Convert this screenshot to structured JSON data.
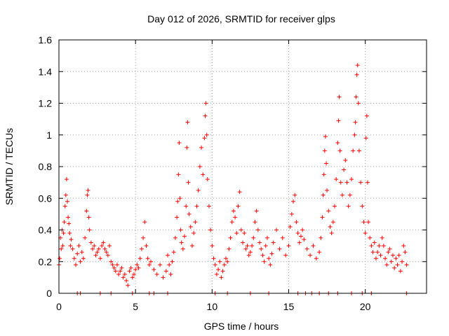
{
  "chart_data": {
    "type": "scatter",
    "title": "Day 012 of 2026, SRMTID for receiver glps",
    "xlabel": "GPS time / hours",
    "ylabel": "SRMTID / TECUs",
    "xlim": [
      0,
      24
    ],
    "ylim": [
      0,
      1.6
    ],
    "xticks": [
      0,
      5,
      10,
      15,
      20
    ],
    "xtick_labels": [
      "0",
      "5",
      "10",
      "15",
      "20"
    ],
    "yticks": [
      0,
      0.2,
      0.4,
      0.6,
      0.8,
      1.0,
      1.2,
      1.4,
      1.6
    ],
    "ytick_labels": [
      "0",
      "0.2",
      "0.4",
      "0.6",
      "0.8",
      "1",
      "1.2",
      "1.4",
      "1.6"
    ],
    "grid": true,
    "marker": "+",
    "series_color": "#ff0000",
    "series": [
      {
        "name": "SRMTID",
        "points": [
          [
            0.0,
            0.18
          ],
          [
            0.05,
            0.22
          ],
          [
            0.1,
            0.35
          ],
          [
            0.15,
            0.28
          ],
          [
            0.2,
            0.4
          ],
          [
            0.25,
            0.3
          ],
          [
            0.3,
            0.38
          ],
          [
            0.35,
            0.45
          ],
          [
            0.4,
            0.55
          ],
          [
            0.45,
            0.62
          ],
          [
            0.5,
            0.72
          ],
          [
            0.55,
            0.58
          ],
          [
            0.6,
            0.48
          ],
          [
            0.65,
            0.44
          ],
          [
            0.7,
            0.38
          ],
          [
            0.75,
            0.3
          ],
          [
            0.8,
            0.34
          ],
          [
            0.9,
            0.28
          ],
          [
            1.0,
            0.22
          ],
          [
            1.1,
            0.18
          ],
          [
            1.2,
            0.25
          ],
          [
            1.3,
            0.3
          ],
          [
            1.4,
            0.2
          ],
          [
            1.5,
            0.26
          ],
          [
            1.6,
            0.22
          ],
          [
            1.7,
            0.35
          ],
          [
            1.8,
            0.52
          ],
          [
            1.85,
            0.62
          ],
          [
            1.9,
            0.65
          ],
          [
            1.95,
            0.48
          ],
          [
            2.0,
            0.4
          ],
          [
            2.1,
            0.32
          ],
          [
            2.2,
            0.28
          ],
          [
            2.3,
            0.3
          ],
          [
            2.4,
            0.24
          ],
          [
            2.5,
            0.26
          ],
          [
            2.6,
            0.28
          ],
          [
            2.7,
            0.22
          ],
          [
            2.8,
            0.3
          ],
          [
            2.9,
            0.32
          ],
          [
            3.0,
            0.28
          ],
          [
            3.1,
            0.26
          ],
          [
            3.2,
            0.24
          ],
          [
            3.3,
            0.3
          ],
          [
            3.4,
            0.2
          ],
          [
            3.5,
            0.18
          ],
          [
            3.6,
            0.16
          ],
          [
            3.7,
            0.14
          ],
          [
            3.8,
            0.18
          ],
          [
            3.9,
            0.12
          ],
          [
            4.0,
            0.14
          ],
          [
            4.1,
            0.16
          ],
          [
            4.2,
            0.1
          ],
          [
            4.3,
            0.12
          ],
          [
            4.4,
            0.08
          ],
          [
            4.5,
            0.05
          ],
          [
            4.6,
            0.14
          ],
          [
            4.7,
            0.16
          ],
          [
            4.8,
            0.1
          ],
          [
            4.9,
            0.12
          ],
          [
            5.0,
            0.15
          ],
          [
            5.1,
            0.18
          ],
          [
            5.2,
            0.16
          ],
          [
            5.3,
            0.22
          ],
          [
            5.4,
            0.28
          ],
          [
            5.5,
            0.35
          ],
          [
            5.6,
            0.45
          ],
          [
            5.7,
            0.3
          ],
          [
            5.8,
            0.22
          ],
          [
            5.9,
            0.18
          ],
          [
            6.0,
            0.2
          ],
          [
            6.2,
            0.15
          ],
          [
            6.4,
            0.12
          ],
          [
            6.6,
            0.18
          ],
          [
            6.8,
            0.1
          ],
          [
            7.0,
            0.14
          ],
          [
            7.1,
            0.24
          ],
          [
            7.2,
            0.18
          ],
          [
            7.3,
            0.12
          ],
          [
            7.4,
            0.2
          ],
          [
            7.5,
            0.26
          ],
          [
            7.6,
            0.35
          ],
          [
            7.7,
            0.48
          ],
          [
            7.75,
            0.58
          ],
          [
            7.8,
            0.75
          ],
          [
            7.85,
            0.95
          ],
          [
            7.9,
            0.6
          ],
          [
            7.95,
            0.4
          ],
          [
            8.0,
            0.32
          ],
          [
            8.1,
            0.28
          ],
          [
            8.2,
            0.36
          ],
          [
            8.3,
            0.55
          ],
          [
            8.35,
            0.92
          ],
          [
            8.4,
            1.08
          ],
          [
            8.45,
            0.7
          ],
          [
            8.5,
            0.5
          ],
          [
            8.6,
            0.42
          ],
          [
            8.7,
            0.3
          ],
          [
            8.8,
            0.38
          ],
          [
            8.9,
            0.45
          ],
          [
            9.0,
            0.55
          ],
          [
            9.1,
            0.65
          ],
          [
            9.2,
            0.8
          ],
          [
            9.3,
            0.92
          ],
          [
            9.4,
            0.75
          ],
          [
            9.5,
            0.98
          ],
          [
            9.55,
            1.12
          ],
          [
            9.6,
            1.2
          ],
          [
            9.65,
            1.0
          ],
          [
            9.7,
            0.72
          ],
          [
            9.8,
            0.55
          ],
          [
            9.9,
            0.4
          ],
          [
            10.0,
            0.3
          ],
          [
            10.1,
            0.22
          ],
          [
            10.2,
            0.18
          ],
          [
            10.3,
            0.12
          ],
          [
            10.4,
            0.15
          ],
          [
            10.5,
            0.2
          ],
          [
            10.6,
            0.1
          ],
          [
            10.7,
            0.14
          ],
          [
            10.8,
            0.18
          ],
          [
            10.9,
            0.22
          ],
          [
            11.0,
            0.2
          ],
          [
            11.1,
            0.28
          ],
          [
            11.2,
            0.35
          ],
          [
            11.3,
            0.45
          ],
          [
            11.4,
            0.52
          ],
          [
            11.5,
            0.48
          ],
          [
            11.6,
            0.38
          ],
          [
            11.7,
            0.55
          ],
          [
            11.8,
            0.64
          ],
          [
            11.9,
            0.4
          ],
          [
            12.0,
            0.32
          ],
          [
            12.1,
            0.38
          ],
          [
            12.2,
            0.28
          ],
          [
            12.3,
            0.3
          ],
          [
            12.4,
            0.24
          ],
          [
            12.5,
            0.26
          ],
          [
            12.6,
            0.3
          ],
          [
            12.7,
            0.35
          ],
          [
            12.8,
            0.45
          ],
          [
            12.9,
            0.52
          ],
          [
            13.0,
            0.4
          ],
          [
            13.1,
            0.32
          ],
          [
            13.2,
            0.28
          ],
          [
            13.3,
            0.24
          ],
          [
            13.4,
            0.2
          ],
          [
            13.5,
            0.3
          ],
          [
            13.6,
            0.35
          ],
          [
            13.7,
            0.22
          ],
          [
            13.8,
            0.18
          ],
          [
            13.9,
            0.25
          ],
          [
            14.0,
            0.32
          ],
          [
            14.2,
            0.4
          ],
          [
            14.4,
            0.28
          ],
          [
            14.6,
            0.35
          ],
          [
            14.8,
            0.24
          ],
          [
            15.0,
            0.3
          ],
          [
            15.1,
            0.42
          ],
          [
            15.2,
            0.5
          ],
          [
            15.3,
            0.58
          ],
          [
            15.4,
            0.62
          ],
          [
            15.5,
            0.45
          ],
          [
            15.6,
            0.38
          ],
          [
            15.7,
            0.32
          ],
          [
            15.8,
            0.36
          ],
          [
            15.9,
            0.4
          ],
          [
            16.0,
            0.34
          ],
          [
            16.2,
            0.28
          ],
          [
            16.4,
            0.24
          ],
          [
            16.6,
            0.3
          ],
          [
            16.8,
            0.22
          ],
          [
            17.0,
            0.26
          ],
          [
            17.1,
            0.35
          ],
          [
            17.2,
            0.48
          ],
          [
            17.25,
            0.62
          ],
          [
            17.3,
            0.75
          ],
          [
            17.35,
            0.9
          ],
          [
            17.4,
            0.99
          ],
          [
            17.45,
            0.82
          ],
          [
            17.5,
            0.65
          ],
          [
            17.6,
            0.52
          ],
          [
            17.7,
            0.42
          ],
          [
            17.8,
            0.38
          ],
          [
            17.9,
            0.45
          ],
          [
            18.0,
            0.55
          ],
          [
            18.1,
            0.72
          ],
          [
            18.2,
            0.95
          ],
          [
            18.25,
            1.09
          ],
          [
            18.3,
            1.24
          ],
          [
            18.35,
            0.9
          ],
          [
            18.4,
            0.7
          ],
          [
            18.5,
            0.62
          ],
          [
            18.6,
            0.78
          ],
          [
            18.7,
            0.84
          ],
          [
            18.8,
            0.7
          ],
          [
            18.9,
            0.55
          ],
          [
            19.0,
            0.62
          ],
          [
            19.1,
            0.72
          ],
          [
            19.2,
            0.9
          ],
          [
            19.3,
            1.0
          ],
          [
            19.35,
            1.08
          ],
          [
            19.4,
            1.24
          ],
          [
            19.45,
            1.38
          ],
          [
            19.5,
            1.44
          ],
          [
            19.55,
            1.2
          ],
          [
            19.6,
            0.9
          ],
          [
            19.7,
            0.7
          ],
          [
            19.8,
            0.55
          ],
          [
            19.9,
            0.45
          ],
          [
            20.0,
            0.38
          ],
          [
            20.05,
            0.98
          ],
          [
            20.1,
            1.12
          ],
          [
            20.15,
            0.7
          ],
          [
            20.2,
            0.45
          ],
          [
            20.3,
            0.35
          ],
          [
            20.4,
            0.3
          ],
          [
            20.5,
            0.26
          ],
          [
            20.6,
            0.32
          ],
          [
            20.7,
            0.22
          ],
          [
            20.8,
            0.26
          ],
          [
            20.9,
            0.3
          ],
          [
            21.0,
            0.24
          ],
          [
            21.1,
            0.35
          ],
          [
            21.2,
            0.3
          ],
          [
            21.3,
            0.22
          ],
          [
            21.4,
            0.18
          ],
          [
            21.5,
            0.26
          ],
          [
            21.6,
            0.28
          ],
          [
            21.7,
            0.2
          ],
          [
            21.8,
            0.24
          ],
          [
            21.9,
            0.16
          ],
          [
            22.0,
            0.22
          ],
          [
            22.1,
            0.18
          ],
          [
            22.2,
            0.24
          ],
          [
            22.3,
            0.14
          ],
          [
            22.4,
            0.2
          ],
          [
            22.5,
            0.3
          ],
          [
            22.6,
            0.26
          ],
          [
            22.7,
            0.18
          ]
        ]
      }
    ],
    "zero_points_x": [
      1.2,
      1.4,
      2.7,
      3.4,
      4.8,
      5.9,
      6.2,
      7.1,
      10.2,
      11.0,
      12.5,
      13.7,
      15.6,
      16.1,
      16.5,
      17.0,
      17.6,
      18.2,
      19.1,
      19.8,
      20.4,
      22.7
    ]
  }
}
